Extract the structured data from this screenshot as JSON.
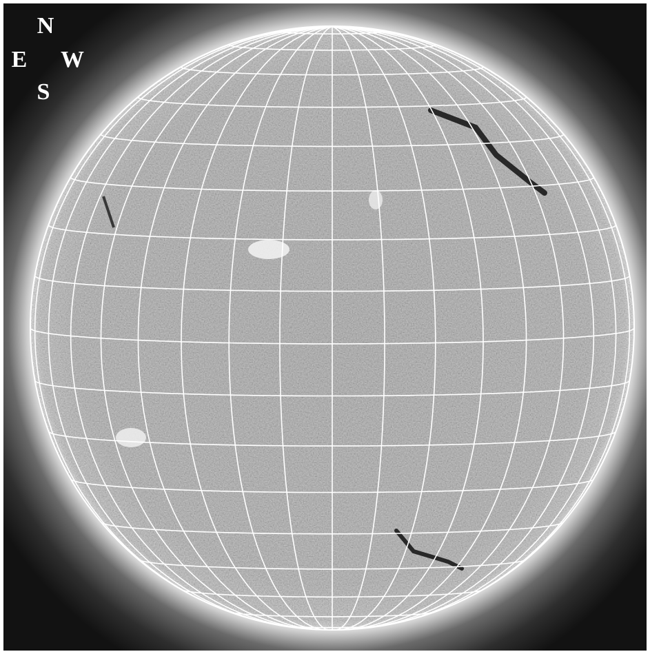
{
  "compass": {
    "north": "N",
    "east": "E",
    "west": "W",
    "south": "S"
  }
}
